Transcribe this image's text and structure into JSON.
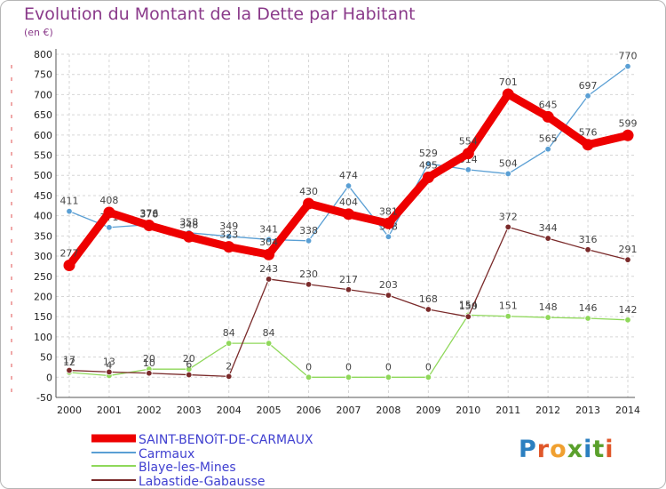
{
  "header": {
    "title": "Evolution du Montant de la Dette par Habitant",
    "unit": "(en €)"
  },
  "logo": {
    "text": "Proxiti",
    "letter_colors": [
      "#2b7fc0",
      "#e0572a",
      "#f0a030",
      "#5aa02c",
      "#2b7fc0",
      "#5aa02c",
      "#e0572a"
    ]
  },
  "chart_data": {
    "type": "line",
    "x": [
      "2000",
      "2001",
      "2002",
      "2003",
      "2004",
      "2005",
      "2006",
      "2007",
      "2008",
      "2009",
      "2010",
      "2011",
      "2012",
      "2013",
      "2014"
    ],
    "ylim": [
      -50,
      800
    ],
    "yticks": [
      "-50",
      "0",
      "50",
      "100",
      "150",
      "200",
      "250",
      "300",
      "350",
      "400",
      "450",
      "500",
      "550",
      "600",
      "650",
      "700",
      "750",
      "800"
    ],
    "grid": true,
    "legend_position": "bottom-left",
    "series": [
      {
        "name": "SAINT-BENOîT-DE-CARMAUX",
        "color": "#ee0000",
        "legend_text_color": "#4040d0",
        "values": [
          277,
          408,
          376,
          348,
          323,
          304,
          430,
          404,
          381,
          495,
          554,
          701,
          645,
          576,
          599
        ],
        "labels": [
          "277",
          "408",
          "376",
          "348",
          "323",
          "304",
          "430",
          "404",
          "381",
          "495",
          "554",
          "701",
          "645",
          "576",
          "599"
        ]
      },
      {
        "name": "Carmaux",
        "color": "#5a9fd4",
        "legend_text_color": "#4040d0",
        "values": [
          411,
          371,
          378,
          358,
          349,
          341,
          338,
          474,
          348,
          529,
          514,
          504,
          565,
          697,
          770
        ],
        "labels": [
          "411",
          "371",
          "378",
          "358",
          "349",
          "341",
          "338",
          "474",
          "348",
          "529",
          "514",
          "504",
          "565",
          "697",
          "770"
        ]
      },
      {
        "name": "Blaye-les-Mines",
        "color": "#8fd85a",
        "legend_text_color": "#4040d0",
        "values": [
          12,
          4,
          20,
          20,
          84,
          84,
          0,
          0,
          0,
          0,
          154,
          151,
          148,
          146,
          142
        ],
        "labels": [
          "12",
          "4",
          "20",
          "20",
          "84",
          "84",
          "0",
          "0",
          "0",
          "0",
          "154",
          "151",
          "148",
          "146",
          "142"
        ]
      },
      {
        "name": "Labastide-Gabausse",
        "color": "#7a2a2a",
        "legend_text_color": "#4040d0",
        "values": [
          17,
          13,
          10,
          6,
          2,
          243,
          230,
          217,
          203,
          168,
          150,
          372,
          344,
          316,
          291
        ],
        "labels": [
          "17",
          "13",
          "10",
          "6",
          "2",
          "243",
          "230",
          "217",
          "203",
          "168",
          "150",
          "372",
          "344",
          "316",
          "291"
        ]
      }
    ]
  }
}
